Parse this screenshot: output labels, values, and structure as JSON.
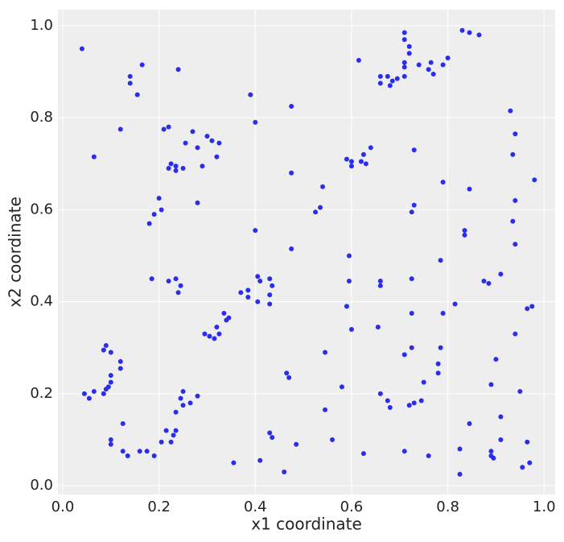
{
  "chart_data": {
    "type": "scatter",
    "x_label": "x1 coordinate",
    "y_label": "x2 coordinate",
    "color": "#2a2eec",
    "background": "#eeeeee",
    "grid": true,
    "xlim": [
      -0.01,
      1.023
    ],
    "ylim": [
      -0.019,
      1.035
    ],
    "xticks": [
      {
        "value": 0,
        "label": "0.0"
      },
      0.2,
      0.4,
      0.6,
      0.8,
      {
        "value": 1,
        "label": "1.0"
      }
    ],
    "yticks": [
      {
        "value": 0,
        "label": "0.0"
      },
      0.2,
      0.4,
      0.6,
      0.8,
      {
        "value": 1,
        "label": "1.0"
      }
    ],
    "x": [
      0.04,
      0.14,
      0.14,
      0.165,
      0.155,
      0.24,
      0.065,
      0.12,
      0.21,
      0.22,
      0.27,
      0.3,
      0.31,
      0.325,
      0.255,
      0.28,
      0.32,
      0.29,
      0.225,
      0.22,
      0.235,
      0.25,
      0.235,
      0.2,
      0.28,
      0.205,
      0.19,
      0.18,
      0.39,
      0.4,
      0.475,
      0.475,
      0.4,
      0.475,
      0.54,
      0.535,
      0.525,
      0.615,
      0.66,
      0.66,
      0.675,
      0.68,
      0.685,
      0.695,
      0.71,
      0.71,
      0.71,
      0.71,
      0.71,
      0.72,
      0.72,
      0.74,
      0.76,
      0.765,
      0.77,
      0.79,
      0.8,
      0.83,
      0.845,
      0.865,
      0.93,
      0.94,
      0.935,
      0.98,
      0.94,
      0.935,
      0.94,
      0.845,
      0.79,
      0.73,
      0.73,
      0.725,
      0.59,
      0.6,
      0.6,
      0.62,
      0.625,
      0.63,
      0.64,
      0.185,
      0.22,
      0.235,
      0.245,
      0.24,
      0.37,
      0.385,
      0.385,
      0.405,
      0.41,
      0.405,
      0.43,
      0.435,
      0.43,
      0.43,
      0.335,
      0.34,
      0.345,
      0.32,
      0.325,
      0.295,
      0.305,
      0.315,
      0.595,
      0.595,
      0.59,
      0.6,
      0.545,
      0.58,
      0.66,
      0.66,
      0.655,
      0.725,
      0.725,
      0.725,
      0.71,
      0.785,
      0.79,
      0.785,
      0.78,
      0.78,
      0.815,
      0.835,
      0.835,
      0.875,
      0.885,
      0.91,
      0.965,
      0.975,
      0.94,
      0.9,
      0.89,
      0.75,
      0.465,
      0.47,
      0.085,
      0.09,
      0.1,
      0.12,
      0.12,
      0.1,
      0.1,
      0.095,
      0.09,
      0.085,
      0.045,
      0.055,
      0.065,
      0.25,
      0.245,
      0.235,
      0.25,
      0.265,
      0.28,
      0.125,
      0.215,
      0.235,
      0.23,
      0.225,
      0.205,
      0.1,
      0.1,
      0.125,
      0.135,
      0.16,
      0.175,
      0.19,
      0.355,
      0.41,
      0.43,
      0.435,
      0.46,
      0.485,
      0.545,
      0.56,
      0.625,
      0.66,
      0.675,
      0.68,
      0.71,
      0.72,
      0.73,
      0.745,
      0.76,
      0.825,
      0.825,
      0.845,
      0.89,
      0.89,
      0.895,
      0.91,
      0.91,
      0.95,
      0.955,
      0.965,
      0.97
    ],
    "y": [
      0.95,
      0.89,
      0.875,
      0.915,
      0.85,
      0.905,
      0.715,
      0.775,
      0.775,
      0.78,
      0.77,
      0.76,
      0.75,
      0.745,
      0.745,
      0.735,
      0.715,
      0.695,
      0.7,
      0.69,
      0.695,
      0.69,
      0.685,
      0.625,
      0.615,
      0.6,
      0.59,
      0.57,
      0.85,
      0.79,
      0.825,
      0.68,
      0.555,
      0.515,
      0.65,
      0.605,
      0.595,
      0.925,
      0.89,
      0.875,
      0.89,
      0.87,
      0.88,
      0.885,
      0.89,
      0.92,
      0.91,
      0.97,
      0.985,
      0.955,
      0.94,
      0.915,
      0.905,
      0.92,
      0.895,
      0.915,
      0.93,
      0.99,
      0.985,
      0.98,
      0.815,
      0.765,
      0.72,
      0.665,
      0.62,
      0.575,
      0.525,
      0.645,
      0.66,
      0.73,
      0.61,
      0.595,
      0.71,
      0.705,
      0.695,
      0.705,
      0.72,
      0.7,
      0.735,
      0.45,
      0.445,
      0.45,
      0.435,
      0.42,
      0.42,
      0.425,
      0.41,
      0.455,
      0.445,
      0.4,
      0.45,
      0.435,
      0.415,
      0.395,
      0.375,
      0.36,
      0.365,
      0.345,
      0.33,
      0.33,
      0.325,
      0.32,
      0.5,
      0.445,
      0.39,
      0.34,
      0.29,
      0.215,
      0.445,
      0.435,
      0.345,
      0.45,
      0.375,
      0.3,
      0.285,
      0.49,
      0.375,
      0.3,
      0.265,
      0.245,
      0.395,
      0.555,
      0.545,
      0.445,
      0.44,
      0.46,
      0.385,
      0.39,
      0.33,
      0.275,
      0.22,
      0.225,
      0.245,
      0.235,
      0.295,
      0.305,
      0.29,
      0.27,
      0.255,
      0.24,
      0.225,
      0.215,
      0.21,
      0.2,
      0.2,
      0.19,
      0.205,
      0.205,
      0.19,
      0.16,
      0.175,
      0.18,
      0.195,
      0.135,
      0.12,
      0.12,
      0.11,
      0.095,
      0.095,
      0.1,
      0.09,
      0.075,
      0.065,
      0.075,
      0.075,
      0.065,
      0.05,
      0.055,
      0.115,
      0.105,
      0.03,
      0.09,
      0.165,
      0.1,
      0.07,
      0.2,
      0.185,
      0.17,
      0.075,
      0.175,
      0.18,
      0.185,
      0.065,
      0.08,
      0.025,
      0.135,
      0.075,
      0.065,
      0.06,
      0.1,
      0.15,
      0.205,
      0.04,
      0.095,
      0.05
    ]
  }
}
